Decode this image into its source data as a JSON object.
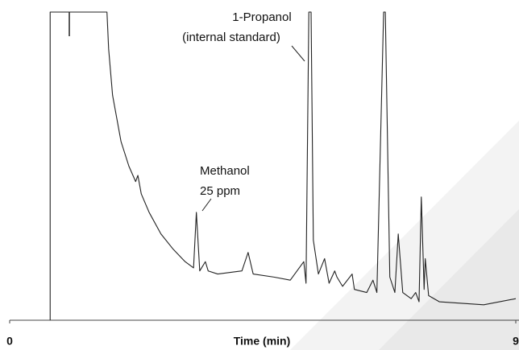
{
  "chart_data": {
    "type": "line",
    "x_label": "Time (min)",
    "xlim": [
      0,
      9
    ],
    "xticks": [
      0,
      9
    ],
    "ylim": [
      0,
      100
    ],
    "color": "#222222",
    "series": [
      {
        "x": [
          0.72,
          0.72,
          1.73,
          1.76,
          1.83,
          1.98,
          2.12,
          2.24,
          2.28,
          2.34,
          2.48,
          2.69,
          2.91,
          3.12,
          3.27,
          3.32,
          3.38,
          3.48,
          3.53,
          3.7,
          4.13,
          4.24,
          4.33,
          4.7,
          4.99,
          5.23,
          5.27,
          5.32,
          5.36,
          5.4,
          5.49,
          5.6,
          5.68,
          5.78,
          5.82,
          5.92,
          6.09,
          6.13,
          6.35,
          6.46,
          6.53,
          6.65,
          6.68,
          6.76,
          6.85,
          6.91,
          6.99,
          7.14,
          7.22,
          7.28,
          7.32,
          7.37,
          7.39,
          7.45,
          7.64,
          8.43,
          9.0
        ],
        "values": [
          0,
          100,
          100,
          88,
          73,
          58,
          50,
          45,
          47,
          41,
          35,
          28,
          23,
          19,
          17,
          35,
          16,
          19,
          16,
          15,
          16,
          22,
          15,
          14,
          13,
          19,
          12,
          100,
          100,
          26,
          15,
          20,
          12,
          16,
          14,
          11,
          15,
          10,
          9,
          13,
          9,
          100,
          100,
          14,
          9,
          28,
          9,
          7,
          9,
          6,
          40,
          10,
          20,
          8,
          6,
          5,
          7
        ]
      }
    ],
    "annotations": [
      {
        "lines": [
          "1-Propanol",
          "(internal standard)"
        ]
      },
      {
        "lines": [
          "Methanol",
          "25 ppm"
        ]
      }
    ]
  }
}
